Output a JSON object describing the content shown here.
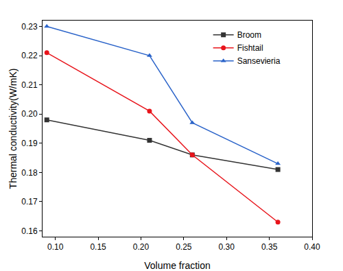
{
  "chart_data": {
    "type": "line",
    "x_label": "Volume fraction",
    "y_label": "Thermal conductivity(W/mK)",
    "x": [
      0.09,
      0.21,
      0.26,
      0.36
    ],
    "series": [
      {
        "name": "Broom",
        "color": "#333333",
        "marker": "square",
        "values": [
          0.198,
          0.191,
          0.186,
          0.181
        ]
      },
      {
        "name": "Fishtail",
        "color": "#e8141b",
        "marker": "circle",
        "values": [
          0.221,
          0.201,
          0.186,
          0.163
        ]
      },
      {
        "name": "Sansevieria",
        "color": "#2a63c9",
        "marker": "triangle-up",
        "values": [
          0.23,
          0.22,
          0.197,
          0.183
        ]
      }
    ],
    "xlim": [
      0.085,
      0.4
    ],
    "xticks": [
      {
        "value": 0.1,
        "label": "0.10"
      },
      {
        "value": 0.15,
        "label": "0.15"
      },
      {
        "value": 0.2,
        "label": "0.20"
      },
      {
        "value": 0.25,
        "label": "0.25"
      },
      {
        "value": 0.3,
        "label": "0.30"
      },
      {
        "value": 0.35,
        "label": "0.35"
      },
      {
        "value": 0.4,
        "label": "0.40"
      }
    ],
    "ylim": [
      0.158,
      0.232
    ],
    "yticks": [
      0.16,
      0.17,
      0.18,
      0.19,
      {
        "value": 0.2,
        "label": "0.20"
      },
      0.21,
      0.22,
      0.23
    ],
    "grid": false,
    "legend": "top right"
  }
}
